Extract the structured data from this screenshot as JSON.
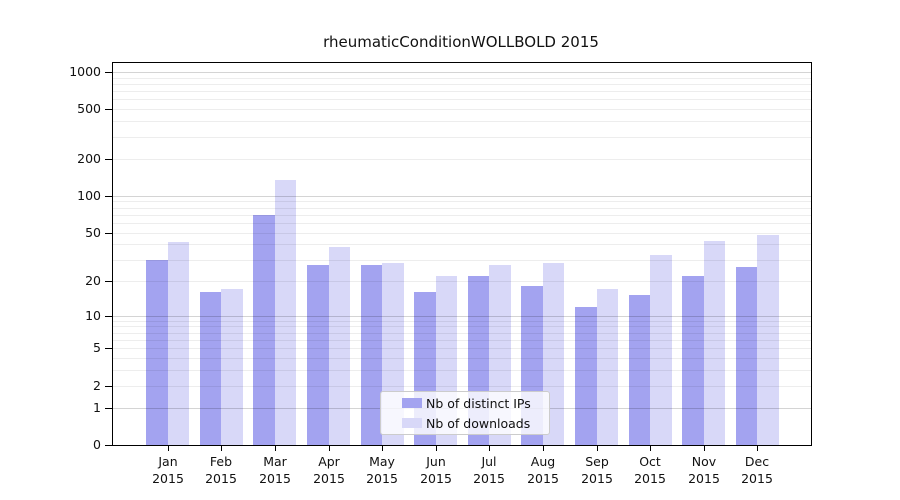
{
  "title": "rheumaticConditionWOLLBOLD 2015",
  "legend": {
    "items": [
      {
        "label": "Nb of distinct IPs",
        "color": "#a3a3f0"
      },
      {
        "label": "Nb of downloads",
        "color": "#d8d8f8"
      }
    ]
  },
  "colors": {
    "bar_distinct_ips": "#a3a3f0",
    "bar_downloads": "#d8d8f8",
    "grid_major": "rgba(0,0,0,0.17)",
    "grid_minor": "rgba(0,0,0,0.07)",
    "frame": "#000000",
    "text": "#111111"
  },
  "chart_data": {
    "type": "bar",
    "title": "rheumaticConditionWOLLBOLD 2015",
    "categories": [
      {
        "month": "Jan",
        "year": "2015"
      },
      {
        "month": "Feb",
        "year": "2015"
      },
      {
        "month": "Mar",
        "year": "2015"
      },
      {
        "month": "Apr",
        "year": "2015"
      },
      {
        "month": "May",
        "year": "2015"
      },
      {
        "month": "Jun",
        "year": "2015"
      },
      {
        "month": "Jul",
        "year": "2015"
      },
      {
        "month": "Aug",
        "year": "2015"
      },
      {
        "month": "Sep",
        "year": "2015"
      },
      {
        "month": "Oct",
        "year": "2015"
      },
      {
        "month": "Nov",
        "year": "2015"
      },
      {
        "month": "Dec",
        "year": "2015"
      }
    ],
    "series": [
      {
        "name": "Nb of distinct IPs",
        "color": "#a3a3f0",
        "values": [
          30,
          16,
          70,
          27,
          27,
          16,
          22,
          18,
          12,
          15,
          22,
          26
        ]
      },
      {
        "name": "Nb of downloads",
        "color": "#d8d8f8",
        "values": [
          42,
          17,
          135,
          38,
          28,
          22,
          27,
          28,
          17,
          33,
          43,
          48
        ]
      }
    ],
    "xlabel": "",
    "ylabel": "",
    "yscale": "log1p",
    "yticks": [
      0,
      1,
      2,
      5,
      10,
      20,
      50,
      100,
      200,
      500,
      1000
    ],
    "grid_major_values": [
      1,
      10,
      100,
      1000
    ],
    "ylim": [
      0,
      1180
    ],
    "grid": "horizontal",
    "legend_position": "bottom-center"
  }
}
